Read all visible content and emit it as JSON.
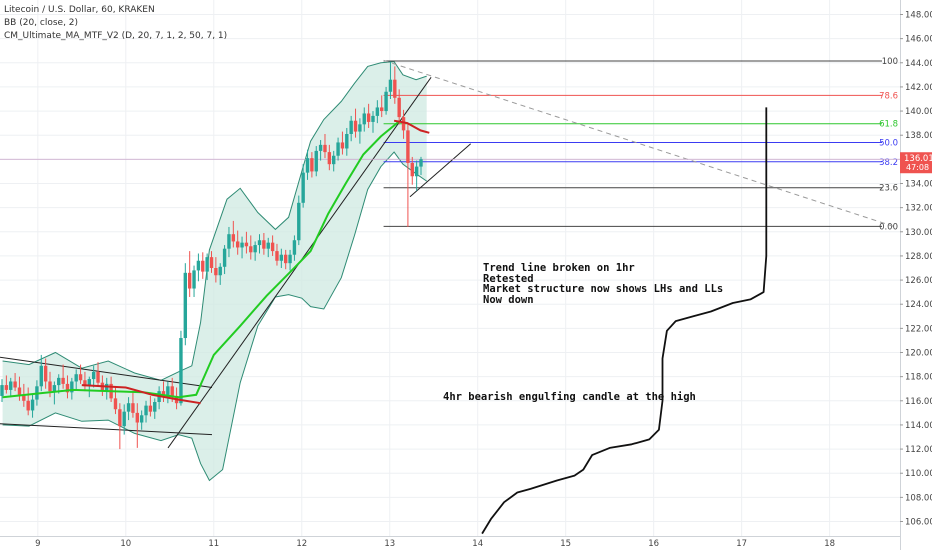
{
  "header": {
    "symbol_line": "Litecoin / U.S. Dollar, 60, KRAKEN",
    "indicator_1": "BB (20, close, 2)",
    "indicator_2": "CM_Ultimate_MA_MTF_V2 (D, 20, 7, 1, 2, 50, 7, 1)"
  },
  "annotations": {
    "block_lines": [
      "Trend line broken on 1hr",
      "Retested",
      "Market structure now shows LHs and LLs",
      "Now down"
    ],
    "engulfing": "4hr bearish engulfing candle at the high"
  },
  "price_tag": {
    "price": "136.01",
    "countdown": "47:08",
    "color": "#ef5350"
  },
  "colors": {
    "up": "#26a69a",
    "down": "#ef5350",
    "bb_line": "#2e8b74",
    "bb_fill": "#cfe9e2",
    "ma_green": "#22cc22",
    "ma_red": "#cc2222",
    "grid": "#eef0f3"
  },
  "chart_data": {
    "type": "candlestick",
    "y_ticks": [
      "106.00",
      "108.00",
      "110.00",
      "112.00",
      "114.00",
      "116.00",
      "118.00",
      "120.00",
      "122.00",
      "124.00",
      "126.00",
      "128.00",
      "130.00",
      "132.00",
      "134.00",
      "136.00",
      "138.00",
      "140.00",
      "142.00",
      "144.00",
      "146.00",
      "148.00"
    ],
    "ylim": [
      104.8,
      149.2
    ],
    "x_ticks": [
      "9",
      "10",
      "11",
      "12",
      "13",
      "14",
      "15",
      "16",
      "17",
      "18"
    ],
    "xlim": [
      8.57,
      18.8
    ],
    "candles": [
      {
        "o": 116.4,
        "h": 117.8,
        "l": 115.9,
        "c": 117.3
      },
      {
        "o": 117.3,
        "h": 118.1,
        "l": 116.6,
        "c": 116.9
      },
      {
        "o": 116.9,
        "h": 117.9,
        "l": 116.3,
        "c": 117.6
      },
      {
        "o": 117.6,
        "h": 118.3,
        "l": 116.8,
        "c": 117.1
      },
      {
        "o": 117.1,
        "h": 118.0,
        "l": 116.0,
        "c": 116.5
      },
      {
        "o": 116.5,
        "h": 117.4,
        "l": 115.5,
        "c": 116.0
      },
      {
        "o": 116.0,
        "h": 117.1,
        "l": 114.8,
        "c": 115.2
      },
      {
        "o": 115.2,
        "h": 116.5,
        "l": 114.6,
        "c": 116.1
      },
      {
        "o": 116.1,
        "h": 117.7,
        "l": 115.6,
        "c": 117.2
      },
      {
        "o": 117.2,
        "h": 119.8,
        "l": 116.8,
        "c": 118.9
      },
      {
        "o": 118.9,
        "h": 119.5,
        "l": 117.0,
        "c": 117.6
      },
      {
        "o": 117.6,
        "h": 118.4,
        "l": 116.3,
        "c": 116.8
      },
      {
        "o": 116.8,
        "h": 117.6,
        "l": 115.7,
        "c": 117.3
      },
      {
        "o": 117.3,
        "h": 118.2,
        "l": 116.6,
        "c": 117.9
      },
      {
        "o": 117.9,
        "h": 119.0,
        "l": 117.0,
        "c": 117.4
      },
      {
        "o": 117.4,
        "h": 118.1,
        "l": 116.2,
        "c": 116.7
      },
      {
        "o": 116.7,
        "h": 117.9,
        "l": 116.1,
        "c": 117.6
      },
      {
        "o": 117.6,
        "h": 118.6,
        "l": 116.9,
        "c": 118.2
      },
      {
        "o": 118.2,
        "h": 119.0,
        "l": 117.4,
        "c": 117.7
      },
      {
        "o": 117.7,
        "h": 118.4,
        "l": 116.8,
        "c": 117.2
      },
      {
        "o": 117.2,
        "h": 118.0,
        "l": 116.3,
        "c": 117.8
      },
      {
        "o": 117.8,
        "h": 118.9,
        "l": 117.1,
        "c": 118.4
      },
      {
        "o": 118.4,
        "h": 119.2,
        "l": 117.2,
        "c": 117.5
      },
      {
        "o": 117.5,
        "h": 118.1,
        "l": 116.4,
        "c": 116.8
      },
      {
        "o": 116.8,
        "h": 117.9,
        "l": 116.1,
        "c": 117.4
      },
      {
        "o": 117.4,
        "h": 118.0,
        "l": 115.9,
        "c": 116.2
      },
      {
        "o": 116.2,
        "h": 117.1,
        "l": 114.9,
        "c": 115.3
      },
      {
        "o": 115.3,
        "h": 115.8,
        "l": 112.0,
        "c": 113.9
      },
      {
        "o": 113.9,
        "h": 115.7,
        "l": 113.2,
        "c": 115.1
      },
      {
        "o": 115.1,
        "h": 116.3,
        "l": 114.4,
        "c": 115.8
      },
      {
        "o": 115.8,
        "h": 116.7,
        "l": 114.6,
        "c": 115.0
      },
      {
        "o": 115.0,
        "h": 115.8,
        "l": 112.1,
        "c": 114.2
      },
      {
        "o": 114.2,
        "h": 115.2,
        "l": 113.6,
        "c": 114.8
      },
      {
        "o": 114.8,
        "h": 116.0,
        "l": 114.2,
        "c": 115.6
      },
      {
        "o": 115.6,
        "h": 116.4,
        "l": 114.7,
        "c": 115.1
      },
      {
        "o": 115.1,
        "h": 116.2,
        "l": 114.5,
        "c": 115.9
      },
      {
        "o": 115.9,
        "h": 117.2,
        "l": 115.3,
        "c": 116.8
      },
      {
        "o": 116.8,
        "h": 117.6,
        "l": 115.9,
        "c": 116.3
      },
      {
        "o": 116.3,
        "h": 117.6,
        "l": 115.8,
        "c": 117.2
      },
      {
        "o": 117.2,
        "h": 117.9,
        "l": 115.9,
        "c": 116.4
      },
      {
        "o": 116.4,
        "h": 117.1,
        "l": 115.3,
        "c": 115.8
      },
      {
        "o": 115.8,
        "h": 121.8,
        "l": 115.6,
        "c": 121.2
      },
      {
        "o": 121.2,
        "h": 127.4,
        "l": 120.6,
        "c": 126.6
      },
      {
        "o": 126.6,
        "h": 128.4,
        "l": 124.6,
        "c": 125.3
      },
      {
        "o": 125.3,
        "h": 127.2,
        "l": 124.6,
        "c": 126.8
      },
      {
        "o": 126.8,
        "h": 128.2,
        "l": 125.9,
        "c": 127.6
      },
      {
        "o": 127.6,
        "h": 128.3,
        "l": 126.1,
        "c": 126.7
      },
      {
        "o": 126.7,
        "h": 128.2,
        "l": 126.0,
        "c": 127.9
      },
      {
        "o": 127.9,
        "h": 128.4,
        "l": 126.6,
        "c": 127.0
      },
      {
        "o": 127.0,
        "h": 127.9,
        "l": 125.8,
        "c": 126.4
      },
      {
        "o": 126.4,
        "h": 127.4,
        "l": 125.6,
        "c": 127.1
      },
      {
        "o": 127.1,
        "h": 128.9,
        "l": 126.5,
        "c": 128.6
      },
      {
        "o": 128.6,
        "h": 130.4,
        "l": 127.9,
        "c": 129.8
      },
      {
        "o": 129.8,
        "h": 130.9,
        "l": 128.7,
        "c": 129.2
      },
      {
        "o": 129.2,
        "h": 130.1,
        "l": 128.1,
        "c": 128.7
      },
      {
        "o": 128.7,
        "h": 129.6,
        "l": 127.8,
        "c": 129.1
      },
      {
        "o": 129.1,
        "h": 130.0,
        "l": 128.2,
        "c": 128.8
      },
      {
        "o": 128.8,
        "h": 129.7,
        "l": 127.7,
        "c": 128.3
      },
      {
        "o": 128.3,
        "h": 129.2,
        "l": 127.6,
        "c": 128.9
      },
      {
        "o": 128.9,
        "h": 129.8,
        "l": 128.2,
        "c": 129.3
      },
      {
        "o": 129.3,
        "h": 129.9,
        "l": 128.1,
        "c": 128.6
      },
      {
        "o": 128.6,
        "h": 129.5,
        "l": 127.9,
        "c": 129.1
      },
      {
        "o": 129.1,
        "h": 129.7,
        "l": 128.0,
        "c": 128.4
      },
      {
        "o": 128.4,
        "h": 129.0,
        "l": 127.2,
        "c": 127.6
      },
      {
        "o": 127.6,
        "h": 128.6,
        "l": 127.0,
        "c": 128.1
      },
      {
        "o": 128.1,
        "h": 128.5,
        "l": 126.9,
        "c": 127.4
      },
      {
        "o": 127.4,
        "h": 128.5,
        "l": 126.8,
        "c": 128.1
      },
      {
        "o": 128.1,
        "h": 129.7,
        "l": 127.6,
        "c": 129.3
      },
      {
        "o": 129.3,
        "h": 133.0,
        "l": 128.9,
        "c": 132.4
      },
      {
        "o": 132.4,
        "h": 135.6,
        "l": 132.0,
        "c": 134.9
      },
      {
        "o": 134.9,
        "h": 136.8,
        "l": 134.3,
        "c": 136.1
      },
      {
        "o": 136.1,
        "h": 136.6,
        "l": 134.5,
        "c": 135.0
      },
      {
        "o": 135.0,
        "h": 137.1,
        "l": 134.6,
        "c": 136.7
      },
      {
        "o": 136.7,
        "h": 137.6,
        "l": 135.9,
        "c": 137.2
      },
      {
        "o": 137.2,
        "h": 138.1,
        "l": 136.1,
        "c": 136.6
      },
      {
        "o": 136.6,
        "h": 137.2,
        "l": 135.1,
        "c": 135.6
      },
      {
        "o": 135.6,
        "h": 136.7,
        "l": 135.0,
        "c": 136.3
      },
      {
        "o": 136.3,
        "h": 137.8,
        "l": 135.9,
        "c": 137.4
      },
      {
        "o": 137.4,
        "h": 138.3,
        "l": 136.4,
        "c": 136.9
      },
      {
        "o": 136.9,
        "h": 138.6,
        "l": 136.3,
        "c": 138.1
      },
      {
        "o": 138.1,
        "h": 139.6,
        "l": 137.5,
        "c": 139.2
      },
      {
        "o": 139.2,
        "h": 140.2,
        "l": 137.8,
        "c": 138.3
      },
      {
        "o": 138.3,
        "h": 139.4,
        "l": 137.3,
        "c": 138.9
      },
      {
        "o": 138.9,
        "h": 140.3,
        "l": 138.3,
        "c": 139.8
      },
      {
        "o": 139.8,
        "h": 140.6,
        "l": 138.6,
        "c": 139.1
      },
      {
        "o": 139.1,
        "h": 140.0,
        "l": 138.2,
        "c": 139.6
      },
      {
        "o": 139.6,
        "h": 140.9,
        "l": 139.0,
        "c": 140.3
      },
      {
        "o": 140.3,
        "h": 141.3,
        "l": 139.5,
        "c": 140.0
      },
      {
        "o": 140.0,
        "h": 142.0,
        "l": 139.7,
        "c": 141.6
      },
      {
        "o": 141.6,
        "h": 144.1,
        "l": 141.0,
        "c": 142.6
      },
      {
        "o": 142.6,
        "h": 143.7,
        "l": 140.6,
        "c": 141.1
      },
      {
        "o": 141.1,
        "h": 141.8,
        "l": 138.9,
        "c": 139.5
      },
      {
        "o": 139.5,
        "h": 140.1,
        "l": 137.7,
        "c": 138.4
      },
      {
        "o": 138.4,
        "h": 138.9,
        "l": 130.4,
        "c": 135.7
      },
      {
        "o": 135.7,
        "h": 136.2,
        "l": 133.9,
        "c": 134.6
      },
      {
        "o": 134.6,
        "h": 135.9,
        "l": 133.4,
        "c": 135.4
      },
      {
        "o": 135.4,
        "h": 136.2,
        "l": 134.7,
        "c": 136.01
      }
    ],
    "bb_upper": [
      [
        8.6,
        119.3
      ],
      [
        8.9,
        119.0
      ],
      [
        9.2,
        120.0
      ],
      [
        9.5,
        118.7
      ],
      [
        9.8,
        119.3
      ],
      [
        10.1,
        118.3
      ],
      [
        10.4,
        117.7
      ],
      [
        10.6,
        118.4
      ],
      [
        10.75,
        118.9
      ],
      [
        10.85,
        122.5
      ],
      [
        10.95,
        128.5
      ],
      [
        11.15,
        132.7
      ],
      [
        11.3,
        133.6
      ],
      [
        11.5,
        131.6
      ],
      [
        11.7,
        130.2
      ],
      [
        11.85,
        131.2
      ],
      [
        12.0,
        135.0
      ],
      [
        12.1,
        137.5
      ],
      [
        12.25,
        139.3
      ],
      [
        12.45,
        140.8
      ],
      [
        12.6,
        142.3
      ],
      [
        12.75,
        143.7
      ],
      [
        12.9,
        144.0
      ],
      [
        13.05,
        144.1
      ],
      [
        13.15,
        143.0
      ],
      [
        13.3,
        142.6
      ],
      [
        13.42,
        142.9
      ]
    ],
    "bb_lower": [
      [
        8.6,
        114.0
      ],
      [
        8.9,
        113.9
      ],
      [
        9.2,
        115.0
      ],
      [
        9.5,
        114.3
      ],
      [
        9.8,
        114.4
      ],
      [
        10.1,
        113.3
      ],
      [
        10.4,
        112.7
      ],
      [
        10.6,
        113.2
      ],
      [
        10.75,
        112.9
      ],
      [
        10.85,
        110.8
      ],
      [
        10.95,
        109.4
      ],
      [
        11.1,
        110.3
      ],
      [
        11.3,
        117.5
      ],
      [
        11.5,
        122.2
      ],
      [
        11.7,
        124.6
      ],
      [
        11.85,
        124.8
      ],
      [
        12.0,
        124.5
      ],
      [
        12.1,
        123.8
      ],
      [
        12.25,
        123.6
      ],
      [
        12.45,
        126.2
      ],
      [
        12.6,
        129.7
      ],
      [
        12.75,
        133.5
      ],
      [
        12.9,
        135.4
      ],
      [
        13.05,
        136.6
      ],
      [
        13.15,
        135.6
      ],
      [
        13.3,
        134.8
      ],
      [
        13.42,
        134.2
      ]
    ],
    "ma_green": [
      [
        8.6,
        116.3
      ],
      [
        9.0,
        116.6
      ],
      [
        9.4,
        116.9
      ],
      [
        9.8,
        116.8
      ],
      [
        10.2,
        116.7
      ],
      [
        10.6,
        116.3
      ],
      [
        10.8,
        116.5
      ],
      [
        11.0,
        119.8
      ],
      [
        11.3,
        122.2
      ],
      [
        11.6,
        124.7
      ],
      [
        11.9,
        126.9
      ],
      [
        12.1,
        128.4
      ],
      [
        12.3,
        131.5
      ],
      [
        12.5,
        134.0
      ],
      [
        12.7,
        136.4
      ],
      [
        12.9,
        137.9
      ],
      [
        13.1,
        139.1
      ]
    ],
    "ma_red": [
      [
        9.5,
        117.3
      ],
      [
        10.0,
        117.1
      ],
      [
        10.3,
        116.5
      ],
      [
        10.6,
        116.1
      ],
      [
        10.85,
        115.8
      ]
    ],
    "ma_red_2": [
      [
        13.05,
        139.2
      ],
      [
        13.2,
        139.0
      ],
      [
        13.35,
        138.4
      ],
      [
        13.45,
        138.2
      ]
    ],
    "fib_levels": [
      {
        "label": "100",
        "price": 144.15,
        "color": "#444444"
      },
      {
        "label": "78.6",
        "price": 141.3,
        "color": "#ef5350"
      },
      {
        "label": "61.8",
        "price": 138.95,
        "color": "#2ec72e"
      },
      {
        "label": "50.0",
        "price": 137.4,
        "color": "#3b3bf2"
      },
      {
        "label": "38.2",
        "price": 135.8,
        "color": "#3b3bf2"
      },
      {
        "label": "23.6",
        "price": 133.65,
        "color": "#444444"
      },
      {
        "label": "0.00",
        "price": 130.45,
        "color": "#444444"
      }
    ],
    "fib_x_start": 12.93,
    "trendlines": [
      {
        "points": [
          [
            8.57,
            119.6
          ],
          [
            10.98,
            117.1
          ]
        ],
        "color": "#222222"
      },
      {
        "points": [
          [
            8.57,
            114.1
          ],
          [
            10.98,
            113.2
          ]
        ],
        "color": "#222222"
      },
      {
        "points": [
          [
            10.48,
            112.1
          ],
          [
            13.47,
            142.8
          ]
        ],
        "color": "#222222"
      },
      {
        "points": [
          [
            13.23,
            132.9
          ],
          [
            13.92,
            137.3
          ]
        ],
        "color": "#222222"
      }
    ],
    "dashed_line": {
      "points": [
        [
          12.93,
          144.2
        ],
        [
          18.75,
          130.4
        ]
      ],
      "color": "#9a9a9a"
    },
    "drawn_curve": [
      [
        14.05,
        105.0
      ],
      [
        14.15,
        106.2
      ],
      [
        14.3,
        107.6
      ],
      [
        14.45,
        108.4
      ],
      [
        14.6,
        108.7
      ],
      [
        14.9,
        109.4
      ],
      [
        15.1,
        109.8
      ],
      [
        15.2,
        110.3
      ],
      [
        15.3,
        111.5
      ],
      [
        15.5,
        112.1
      ],
      [
        15.75,
        112.4
      ],
      [
        15.95,
        112.8
      ],
      [
        16.06,
        113.6
      ],
      [
        16.1,
        116.0
      ],
      [
        16.1,
        119.5
      ],
      [
        16.15,
        121.8
      ],
      [
        16.25,
        122.6
      ],
      [
        16.45,
        123.0
      ],
      [
        16.65,
        123.4
      ],
      [
        16.9,
        124.1
      ],
      [
        17.1,
        124.4
      ],
      [
        17.25,
        125.0
      ],
      [
        17.28,
        128.0
      ],
      [
        17.28,
        134.0
      ],
      [
        17.28,
        140.3
      ]
    ],
    "last_price_line": 136.01
  }
}
